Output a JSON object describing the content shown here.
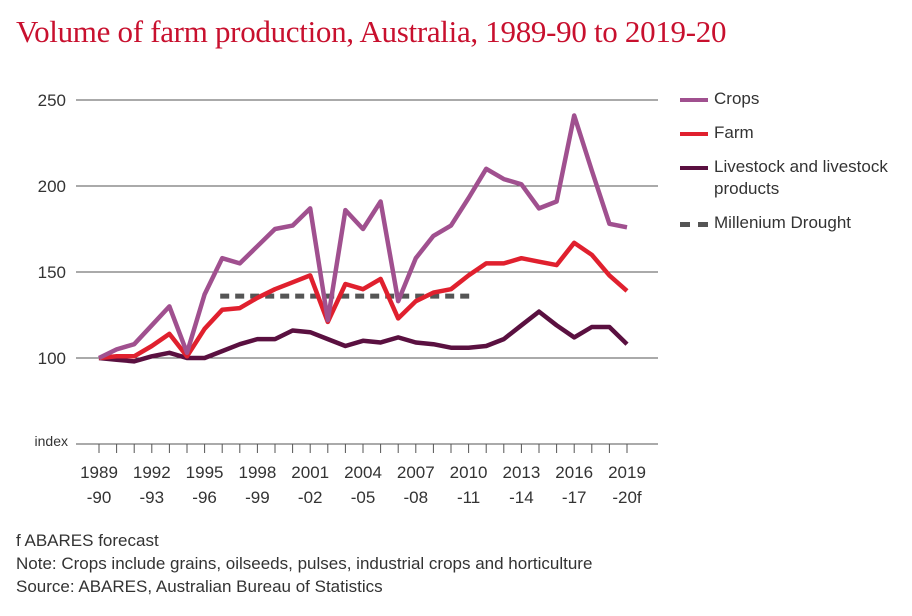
{
  "title": "Volume of farm production, Australia, 1989-90 to 2019-20",
  "colors": {
    "crops": "#a0508f",
    "farm": "#e0202e",
    "livestock": "#5a1040",
    "drought": "#555555",
    "grid": "#555555",
    "title": "#c8102e"
  },
  "legend": {
    "crops": "Crops",
    "farm": "Farm",
    "livestock": "Livestock and livestock products",
    "drought": "Millenium Drought"
  },
  "notes": {
    "forecast": "f ABARES forecast",
    "note": "Note: Crops include grains, oilseeds, pulses, industrial crops and horticulture",
    "source": "Source: ABARES, Australian Bureau of Statistics"
  },
  "chart_data": {
    "type": "line",
    "title": "Volume of farm production, Australia, 1989-90 to 2019-20",
    "ylabel": "index",
    "ylim": [
      50,
      250
    ],
    "yticks": [
      100,
      150,
      200,
      250
    ],
    "x": [
      "1989-90",
      "1990-91",
      "1991-92",
      "1992-93",
      "1993-94",
      "1994-95",
      "1995-96",
      "1996-97",
      "1997-98",
      "1998-99",
      "1999-00",
      "2000-01",
      "2001-02",
      "2002-03",
      "2003-04",
      "2004-05",
      "2005-06",
      "2006-07",
      "2007-08",
      "2008-09",
      "2009-10",
      "2010-11",
      "2011-12",
      "2012-13",
      "2013-14",
      "2014-15",
      "2015-16",
      "2016-17",
      "2017-18",
      "2018-19",
      "2019-20f"
    ],
    "xtick_labels": [
      {
        "index": 0,
        "line1": "1989",
        "line2": "-90"
      },
      {
        "index": 3,
        "line1": "1992",
        "line2": "-93"
      },
      {
        "index": 6,
        "line1": "1995",
        "line2": "-96"
      },
      {
        "index": 9,
        "line1": "1998",
        "line2": "-99"
      },
      {
        "index": 12,
        "line1": "2001",
        "line2": "-02"
      },
      {
        "index": 15,
        "line1": "2004",
        "line2": "-05"
      },
      {
        "index": 18,
        "line1": "2007",
        "line2": "-08"
      },
      {
        "index": 21,
        "line1": "2010",
        "line2": "-11"
      },
      {
        "index": 24,
        "line1": "2013",
        "line2": "-14"
      },
      {
        "index": 27,
        "line1": "2016",
        "line2": "-17"
      },
      {
        "index": 30,
        "line1": "2019",
        "line2": "-20f"
      }
    ],
    "series": [
      {
        "name": "Crops",
        "key": "crops",
        "values": [
          100,
          105,
          108,
          119,
          130,
          103,
          137,
          158,
          155,
          165,
          175,
          177,
          187,
          122,
          186,
          175,
          191,
          133,
          158,
          171,
          177,
          193,
          210,
          204,
          201,
          187,
          191,
          241,
          209,
          178,
          176
        ]
      },
      {
        "name": "Farm",
        "key": "farm",
        "values": [
          100,
          101,
          101,
          107,
          114,
          101,
          117,
          128,
          129,
          135,
          140,
          144,
          148,
          121,
          143,
          140,
          146,
          123,
          133,
          138,
          140,
          148,
          155,
          155,
          158,
          156,
          154,
          167,
          160,
          148,
          139
        ]
      },
      {
        "name": "Livestock and livestock products",
        "key": "livestock",
        "values": [
          100,
          99,
          98,
          101,
          103,
          100,
          100,
          104,
          108,
          111,
          111,
          116,
          115,
          111,
          107,
          110,
          109,
          112,
          109,
          108,
          106,
          106,
          107,
          111,
          119,
          127,
          119,
          112,
          118,
          118,
          108
        ]
      }
    ],
    "drought": {
      "name": "Millenium Drought",
      "value": 136,
      "start_index": 7,
      "end_index": 21
    },
    "grid": true,
    "legend_position": "right"
  }
}
